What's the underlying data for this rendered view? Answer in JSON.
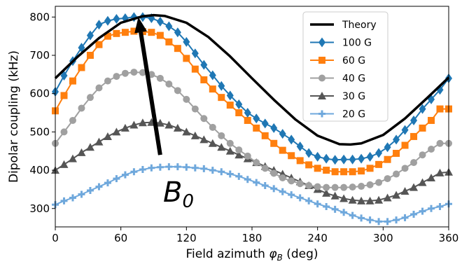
{
  "chart_data": {
    "type": "line",
    "xlabel": "Field azimuth φ_B (deg)",
    "ylabel": "Dipolar coupling (kHz)",
    "xlim": [
      0,
      360
    ],
    "ylim": [
      252,
      828
    ],
    "xticks": [
      0,
      60,
      120,
      180,
      240,
      300,
      360
    ],
    "yticks": [
      300,
      400,
      500,
      600,
      700,
      800
    ],
    "grid": false,
    "legend_position": "top-right",
    "annotation": {
      "text": "B",
      "subscript": "0",
      "arrow_from": [
        96,
        440
      ],
      "arrow_to": [
        76,
        800
      ]
    },
    "series": [
      {
        "name": "Theory",
        "color": "#000000",
        "marker": "none",
        "x": [
          0,
          20,
          40,
          60,
          80,
          90,
          100,
          120,
          140,
          160,
          180,
          200,
          220,
          240,
          260,
          270,
          280,
          300,
          320,
          340,
          360
        ],
        "values": [
          640,
          695,
          745,
          785,
          802,
          805,
          803,
          785,
          748,
          697,
          640,
          584,
          532,
          490,
          468,
          467,
          470,
          492,
          535,
          588,
          642
        ]
      },
      {
        "name": "100 G",
        "color": "#1f77b4",
        "marker": "diamond",
        "x": [
          0,
          8,
          16,
          24,
          32,
          40,
          48,
          56,
          64,
          72,
          80,
          88,
          96,
          104,
          112,
          120,
          128,
          136,
          144,
          152,
          160,
          168,
          176,
          184,
          192,
          200,
          208,
          216,
          224,
          232,
          240,
          248,
          256,
          264,
          272,
          280,
          288,
          296,
          304,
          312,
          320,
          328,
          336,
          344,
          352,
          360
        ],
        "values": [
          605,
          647,
          685,
          720,
          752,
          780,
          790,
          795,
          797,
          800,
          800,
          797,
          788,
          776,
          760,
          735,
          705,
          675,
          648,
          620,
          595,
          572,
          550,
          535,
          522,
          510,
          495,
          480,
          462,
          445,
          435,
          430,
          427,
          428,
          428,
          430,
          435,
          445,
          460,
          480,
          505,
          530,
          560,
          585,
          610,
          640
        ]
      },
      {
        "name": "60 G",
        "color": "#ff7f0e",
        "marker": "square",
        "x": [
          0,
          8,
          16,
          24,
          32,
          40,
          48,
          56,
          64,
          72,
          80,
          88,
          96,
          104,
          112,
          120,
          128,
          136,
          144,
          152,
          160,
          168,
          176,
          184,
          192,
          200,
          208,
          216,
          224,
          232,
          240,
          248,
          256,
          264,
          272,
          280,
          288,
          296,
          304,
          312,
          320,
          328,
          336,
          344,
          352,
          360
        ],
        "values": [
          555,
          595,
          633,
          668,
          700,
          728,
          750,
          757,
          760,
          763,
          762,
          760,
          752,
          735,
          718,
          692,
          664,
          636,
          612,
          590,
          570,
          550,
          530,
          510,
          490,
          470,
          452,
          438,
          425,
          414,
          405,
          400,
          396,
          396,
          396,
          398,
          405,
          415,
          428,
          444,
          465,
          488,
          510,
          530,
          560,
          560
        ]
      },
      {
        "name": "40 G",
        "color": "#a0a0a0",
        "marker": "circle",
        "x": [
          0,
          8,
          16,
          24,
          32,
          40,
          48,
          56,
          64,
          72,
          80,
          88,
          96,
          104,
          112,
          120,
          128,
          136,
          144,
          152,
          160,
          168,
          176,
          184,
          192,
          200,
          208,
          216,
          224,
          232,
          240,
          248,
          256,
          264,
          272,
          280,
          288,
          296,
          304,
          312,
          320,
          328,
          336,
          344,
          352,
          360
        ],
        "values": [
          470,
          500,
          530,
          562,
          590,
          615,
          633,
          645,
          653,
          656,
          655,
          650,
          640,
          625,
          608,
          585,
          560,
          535,
          512,
          490,
          470,
          453,
          437,
          420,
          405,
          392,
          380,
          372,
          365,
          360,
          357,
          355,
          355,
          355,
          356,
          358,
          362,
          368,
          378,
          390,
          405,
          420,
          440,
          455,
          470,
          470
        ]
      },
      {
        "name": "30 G",
        "color": "#555555",
        "marker": "triangle",
        "x": [
          0,
          8,
          16,
          24,
          32,
          40,
          48,
          56,
          64,
          72,
          80,
          88,
          96,
          104,
          112,
          120,
          128,
          136,
          144,
          152,
          160,
          168,
          176,
          184,
          192,
          200,
          208,
          216,
          224,
          232,
          240,
          248,
          256,
          264,
          272,
          280,
          288,
          296,
          304,
          312,
          320,
          328,
          336,
          344,
          352,
          360
        ],
        "values": [
          400,
          415,
          430,
          446,
          460,
          474,
          488,
          500,
          510,
          518,
          524,
          525,
          523,
          518,
          510,
          500,
          490,
          480,
          470,
          460,
          450,
          440,
          430,
          420,
          410,
          400,
          390,
          380,
          370,
          360,
          350,
          340,
          333,
          326,
          322,
          320,
          320,
          322,
          328,
          335,
          345,
          355,
          368,
          380,
          393,
          395
        ]
      },
      {
        "name": "20 G",
        "color": "#6fa8dc",
        "marker": "plus",
        "x": [
          0,
          8,
          16,
          24,
          32,
          40,
          48,
          56,
          64,
          72,
          80,
          88,
          96,
          104,
          112,
          120,
          128,
          136,
          144,
          152,
          160,
          168,
          176,
          184,
          192,
          200,
          208,
          216,
          224,
          232,
          240,
          248,
          256,
          264,
          272,
          280,
          288,
          296,
          304,
          312,
          320,
          328,
          336,
          344,
          352,
          360
        ],
        "values": [
          310,
          320,
          328,
          337,
          347,
          357,
          367,
          378,
          388,
          396,
          402,
          406,
          408,
          409,
          409,
          408,
          406,
          404,
          400,
          396,
          390,
          384,
          376,
          368,
          360,
          352,
          344,
          336,
          328,
          320,
          312,
          305,
          298,
          290,
          282,
          275,
          270,
          266,
          266,
          270,
          276,
          285,
          293,
          300,
          305,
          312
        ]
      }
    ]
  }
}
